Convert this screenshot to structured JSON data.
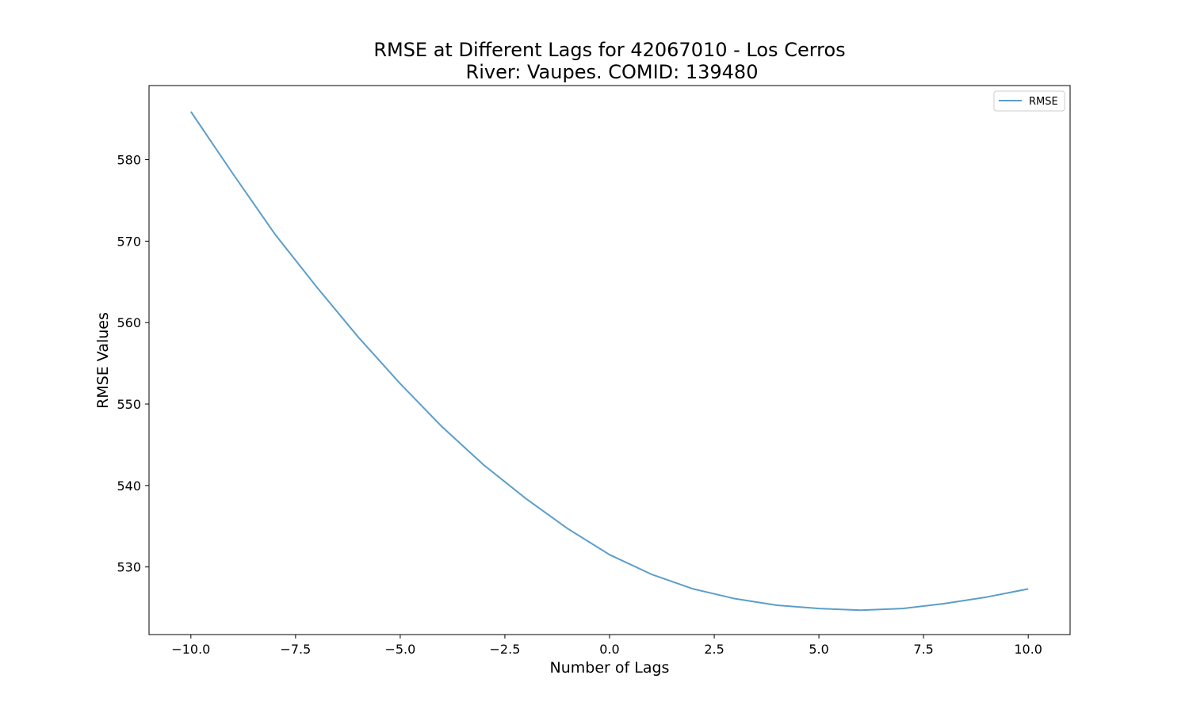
{
  "chart_data": {
    "type": "line",
    "title": "RMSE at Different Lags for 42067010 - Los Cerros",
    "subtitle": "River: Vaupes. COMID: 139480",
    "xlabel": "Number of Lags",
    "ylabel": "RMSE Values",
    "xlim": [
      -11,
      11
    ],
    "ylim": [
      521.7,
      589.1
    ],
    "grid": false,
    "legend_placement": "top-right",
    "x_ticks": [
      -10,
      -7.5,
      -5,
      -2.5,
      0,
      2.5,
      5,
      7.5,
      10
    ],
    "x_tick_labels": [
      "−10.0",
      "−7.5",
      "−5.0",
      "−2.5",
      "0.0",
      "2.5",
      "5.0",
      "7.5",
      "10.0"
    ],
    "y_ticks": [
      530,
      540,
      550,
      560,
      570,
      580
    ],
    "y_tick_labels": [
      "530",
      "540",
      "550",
      "560",
      "570",
      "580"
    ],
    "x": [
      -10,
      -9,
      -8,
      -7,
      -6,
      -5,
      -4,
      -3,
      -2,
      -1,
      0,
      1,
      2,
      3,
      4,
      5,
      6,
      7,
      8,
      9,
      10
    ],
    "series": [
      {
        "name": "RMSE",
        "color": "#5b9ec9",
        "values": [
          585.9,
          578.3,
          570.9,
          564.4,
          558.2,
          552.5,
          547.2,
          542.5,
          538.4,
          534.7,
          531.5,
          529.1,
          527.3,
          526.1,
          525.3,
          524.9,
          524.7,
          524.9,
          525.5,
          526.3,
          527.3
        ]
      }
    ]
  }
}
